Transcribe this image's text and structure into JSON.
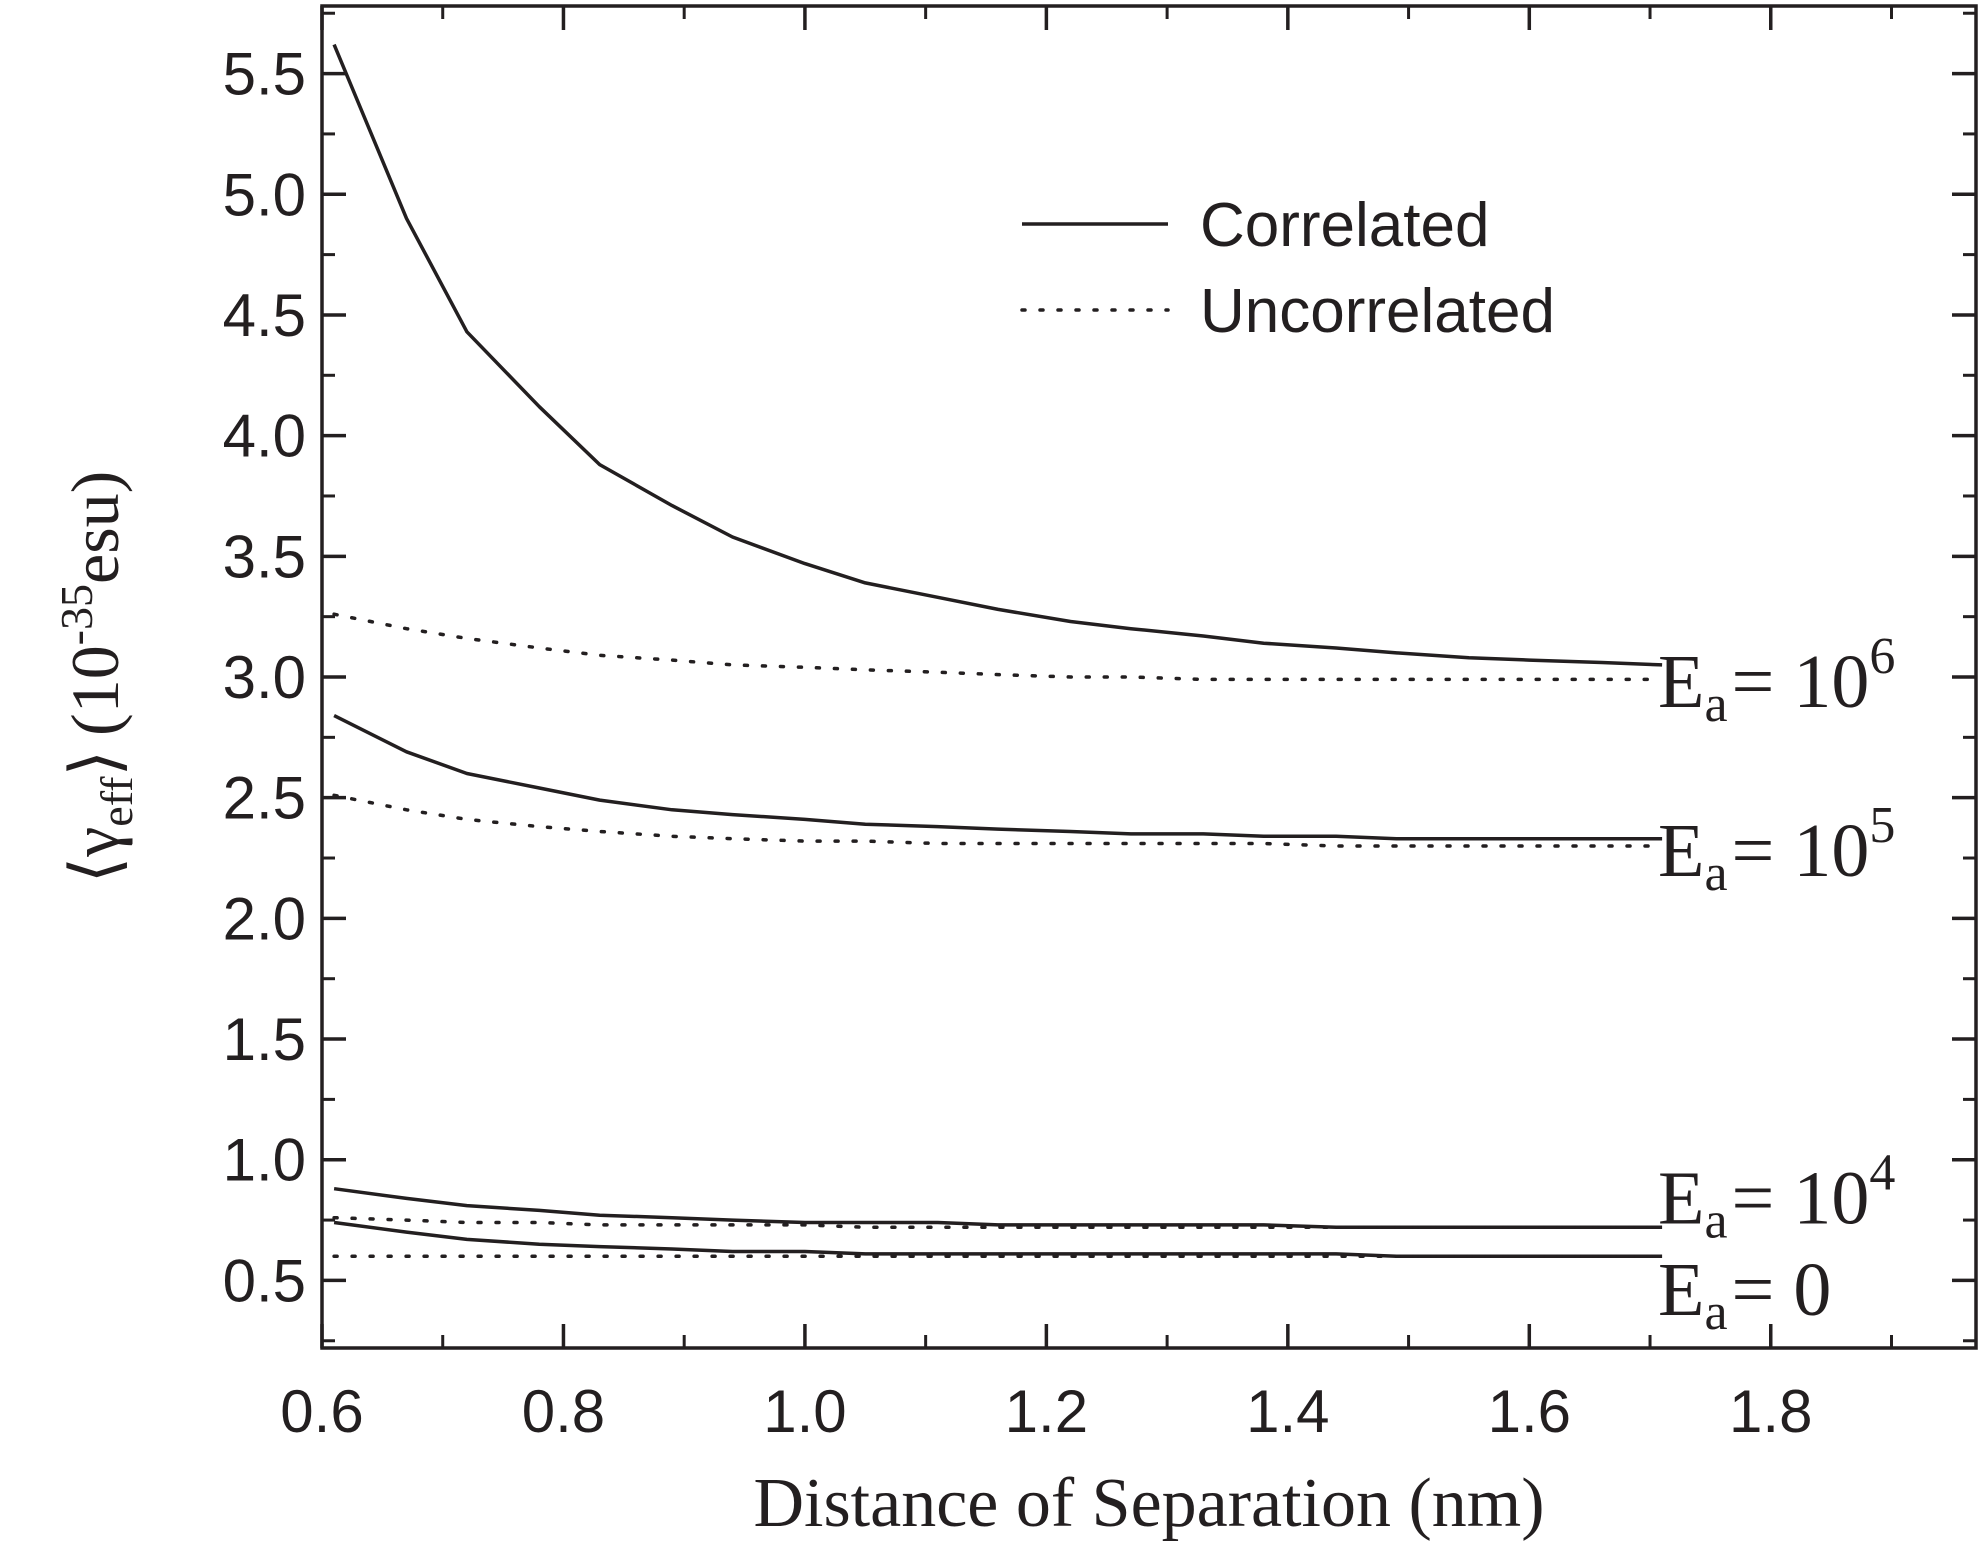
{
  "chart_data": {
    "type": "line",
    "xlabel": "Distance of Separation (nm)",
    "ylabel": {
      "bracket_left": "⟨",
      "gamma": "γ",
      "sub": "eff",
      "bracket_right": "⟩",
      "unit_prefix": "(10",
      "exponent": "-35",
      "unit_suffix": "esu)"
    },
    "xlim": [
      0.6,
      1.97
    ],
    "ylim": [
      0.22,
      5.78
    ],
    "xticks": [
      "0.6",
      "0.8",
      "1.0",
      "1.2",
      "1.4",
      "1.6",
      "1.8"
    ],
    "yticks": [
      "0.5",
      "1.0",
      "1.5",
      "2.0",
      "2.5",
      "3.0",
      "3.5",
      "4.0",
      "4.5",
      "5.0",
      "5.5"
    ],
    "x": [
      0.61,
      0.67,
      0.72,
      0.78,
      0.83,
      0.89,
      0.94,
      1.0,
      1.05,
      1.11,
      1.16,
      1.22,
      1.27,
      1.33,
      1.38,
      1.44,
      1.49,
      1.55,
      1.6,
      1.66,
      1.71
    ],
    "legend": {
      "position": "top-right",
      "entries": [
        {
          "label": "Correlated",
          "style": "solid"
        },
        {
          "label": "Uncorrelated",
          "style": "dotted"
        }
      ]
    },
    "grid": false,
    "series": [
      {
        "field": "Ea = 10^6",
        "style": "solid",
        "values": [
          5.62,
          4.9,
          4.43,
          4.12,
          3.88,
          3.71,
          3.58,
          3.47,
          3.39,
          3.33,
          3.28,
          3.23,
          3.2,
          3.17,
          3.14,
          3.12,
          3.1,
          3.08,
          3.07,
          3.06,
          3.05
        ]
      },
      {
        "field": "Ea = 10^6",
        "style": "dotted",
        "values": [
          3.26,
          3.2,
          3.16,
          3.12,
          3.09,
          3.07,
          3.05,
          3.04,
          3.03,
          3.02,
          3.01,
          3.0,
          3.0,
          2.99,
          2.99,
          2.99,
          2.99,
          2.99,
          2.99,
          2.99,
          2.99
        ]
      },
      {
        "field": "Ea = 10^5",
        "style": "solid",
        "values": [
          2.84,
          2.69,
          2.6,
          2.54,
          2.49,
          2.45,
          2.43,
          2.41,
          2.39,
          2.38,
          2.37,
          2.36,
          2.35,
          2.35,
          2.34,
          2.34,
          2.33,
          2.33,
          2.33,
          2.33,
          2.33
        ]
      },
      {
        "field": "Ea = 10^5",
        "style": "dotted",
        "values": [
          2.51,
          2.45,
          2.41,
          2.38,
          2.36,
          2.34,
          2.33,
          2.32,
          2.32,
          2.31,
          2.31,
          2.31,
          2.31,
          2.31,
          2.31,
          2.3,
          2.3,
          2.3,
          2.3,
          2.3,
          2.3
        ]
      },
      {
        "field": "Ea = 10^4",
        "style": "solid",
        "values": [
          0.88,
          0.84,
          0.81,
          0.79,
          0.77,
          0.76,
          0.75,
          0.74,
          0.74,
          0.74,
          0.73,
          0.73,
          0.73,
          0.73,
          0.73,
          0.72,
          0.72,
          0.72,
          0.72,
          0.72,
          0.72
        ]
      },
      {
        "field": "Ea = 10^4",
        "style": "dotted",
        "values": [
          0.76,
          0.75,
          0.74,
          0.74,
          0.73,
          0.73,
          0.73,
          0.73,
          0.72,
          0.72,
          0.72,
          0.72,
          0.72,
          0.72,
          0.72,
          0.72,
          0.72,
          0.72,
          0.72,
          0.72,
          0.72
        ]
      },
      {
        "field": "Ea = 0",
        "style": "solid",
        "values": [
          0.74,
          0.7,
          0.67,
          0.65,
          0.64,
          0.63,
          0.62,
          0.62,
          0.61,
          0.61,
          0.61,
          0.61,
          0.61,
          0.61,
          0.61,
          0.61,
          0.6,
          0.6,
          0.6,
          0.6,
          0.6
        ]
      },
      {
        "field": "Ea = 0",
        "style": "dotted",
        "values": [
          0.6,
          0.6,
          0.6,
          0.6,
          0.6,
          0.6,
          0.6,
          0.6,
          0.6,
          0.6,
          0.6,
          0.6,
          0.6,
          0.6,
          0.6,
          0.6,
          0.6,
          0.6,
          0.6,
          0.6,
          0.6
        ]
      }
    ],
    "annotations": [
      {
        "text": "E",
        "sub": "a",
        "eq": "= 10",
        "sup": "6",
        "y": 3.0
      },
      {
        "text": "E",
        "sub": "a",
        "eq": "= 10",
        "sup": "5",
        "y": 2.3
      },
      {
        "text": "E",
        "sub": "a",
        "eq": "= 10",
        "sup": "4",
        "y": 0.86
      },
      {
        "text": "E",
        "sub": "a",
        "eq": "= 0",
        "sup": "",
        "y": 0.48
      }
    ]
  }
}
